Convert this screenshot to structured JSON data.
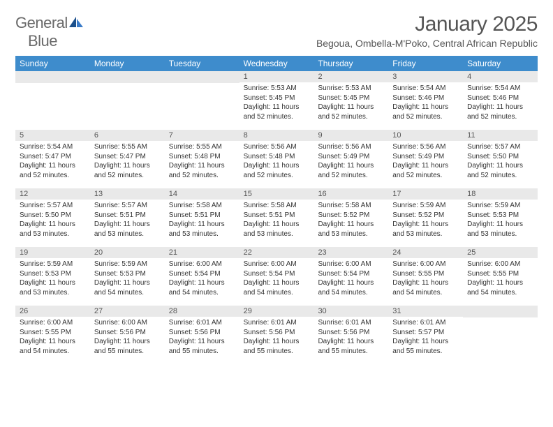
{
  "brand": {
    "word1": "General",
    "word2": "Blue"
  },
  "title": "January 2025",
  "subtitle": "Begoua, Ombella-M'Poko, Central African Republic",
  "colors": {
    "header_bg": "#3e8ccc",
    "daynum_bg": "#e9e9e9",
    "text": "#333333",
    "title_text": "#555555",
    "logo_gray": "#6a6a6a",
    "logo_blue": "#3a7bc8"
  },
  "day_names": [
    "Sunday",
    "Monday",
    "Tuesday",
    "Wednesday",
    "Thursday",
    "Friday",
    "Saturday"
  ],
  "weeks": [
    [
      {
        "day": "",
        "sunrise": "",
        "sunset": "",
        "daylight1": "",
        "daylight2": ""
      },
      {
        "day": "",
        "sunrise": "",
        "sunset": "",
        "daylight1": "",
        "daylight2": ""
      },
      {
        "day": "",
        "sunrise": "",
        "sunset": "",
        "daylight1": "",
        "daylight2": ""
      },
      {
        "day": "1",
        "sunrise": "Sunrise: 5:53 AM",
        "sunset": "Sunset: 5:45 PM",
        "daylight1": "Daylight: 11 hours",
        "daylight2": "and 52 minutes."
      },
      {
        "day": "2",
        "sunrise": "Sunrise: 5:53 AM",
        "sunset": "Sunset: 5:45 PM",
        "daylight1": "Daylight: 11 hours",
        "daylight2": "and 52 minutes."
      },
      {
        "day": "3",
        "sunrise": "Sunrise: 5:54 AM",
        "sunset": "Sunset: 5:46 PM",
        "daylight1": "Daylight: 11 hours",
        "daylight2": "and 52 minutes."
      },
      {
        "day": "4",
        "sunrise": "Sunrise: 5:54 AM",
        "sunset": "Sunset: 5:46 PM",
        "daylight1": "Daylight: 11 hours",
        "daylight2": "and 52 minutes."
      }
    ],
    [
      {
        "day": "5",
        "sunrise": "Sunrise: 5:54 AM",
        "sunset": "Sunset: 5:47 PM",
        "daylight1": "Daylight: 11 hours",
        "daylight2": "and 52 minutes."
      },
      {
        "day": "6",
        "sunrise": "Sunrise: 5:55 AM",
        "sunset": "Sunset: 5:47 PM",
        "daylight1": "Daylight: 11 hours",
        "daylight2": "and 52 minutes."
      },
      {
        "day": "7",
        "sunrise": "Sunrise: 5:55 AM",
        "sunset": "Sunset: 5:48 PM",
        "daylight1": "Daylight: 11 hours",
        "daylight2": "and 52 minutes."
      },
      {
        "day": "8",
        "sunrise": "Sunrise: 5:56 AM",
        "sunset": "Sunset: 5:48 PM",
        "daylight1": "Daylight: 11 hours",
        "daylight2": "and 52 minutes."
      },
      {
        "day": "9",
        "sunrise": "Sunrise: 5:56 AM",
        "sunset": "Sunset: 5:49 PM",
        "daylight1": "Daylight: 11 hours",
        "daylight2": "and 52 minutes."
      },
      {
        "day": "10",
        "sunrise": "Sunrise: 5:56 AM",
        "sunset": "Sunset: 5:49 PM",
        "daylight1": "Daylight: 11 hours",
        "daylight2": "and 52 minutes."
      },
      {
        "day": "11",
        "sunrise": "Sunrise: 5:57 AM",
        "sunset": "Sunset: 5:50 PM",
        "daylight1": "Daylight: 11 hours",
        "daylight2": "and 52 minutes."
      }
    ],
    [
      {
        "day": "12",
        "sunrise": "Sunrise: 5:57 AM",
        "sunset": "Sunset: 5:50 PM",
        "daylight1": "Daylight: 11 hours",
        "daylight2": "and 53 minutes."
      },
      {
        "day": "13",
        "sunrise": "Sunrise: 5:57 AM",
        "sunset": "Sunset: 5:51 PM",
        "daylight1": "Daylight: 11 hours",
        "daylight2": "and 53 minutes."
      },
      {
        "day": "14",
        "sunrise": "Sunrise: 5:58 AM",
        "sunset": "Sunset: 5:51 PM",
        "daylight1": "Daylight: 11 hours",
        "daylight2": "and 53 minutes."
      },
      {
        "day": "15",
        "sunrise": "Sunrise: 5:58 AM",
        "sunset": "Sunset: 5:51 PM",
        "daylight1": "Daylight: 11 hours",
        "daylight2": "and 53 minutes."
      },
      {
        "day": "16",
        "sunrise": "Sunrise: 5:58 AM",
        "sunset": "Sunset: 5:52 PM",
        "daylight1": "Daylight: 11 hours",
        "daylight2": "and 53 minutes."
      },
      {
        "day": "17",
        "sunrise": "Sunrise: 5:59 AM",
        "sunset": "Sunset: 5:52 PM",
        "daylight1": "Daylight: 11 hours",
        "daylight2": "and 53 minutes."
      },
      {
        "day": "18",
        "sunrise": "Sunrise: 5:59 AM",
        "sunset": "Sunset: 5:53 PM",
        "daylight1": "Daylight: 11 hours",
        "daylight2": "and 53 minutes."
      }
    ],
    [
      {
        "day": "19",
        "sunrise": "Sunrise: 5:59 AM",
        "sunset": "Sunset: 5:53 PM",
        "daylight1": "Daylight: 11 hours",
        "daylight2": "and 53 minutes."
      },
      {
        "day": "20",
        "sunrise": "Sunrise: 5:59 AM",
        "sunset": "Sunset: 5:53 PM",
        "daylight1": "Daylight: 11 hours",
        "daylight2": "and 54 minutes."
      },
      {
        "day": "21",
        "sunrise": "Sunrise: 6:00 AM",
        "sunset": "Sunset: 5:54 PM",
        "daylight1": "Daylight: 11 hours",
        "daylight2": "and 54 minutes."
      },
      {
        "day": "22",
        "sunrise": "Sunrise: 6:00 AM",
        "sunset": "Sunset: 5:54 PM",
        "daylight1": "Daylight: 11 hours",
        "daylight2": "and 54 minutes."
      },
      {
        "day": "23",
        "sunrise": "Sunrise: 6:00 AM",
        "sunset": "Sunset: 5:54 PM",
        "daylight1": "Daylight: 11 hours",
        "daylight2": "and 54 minutes."
      },
      {
        "day": "24",
        "sunrise": "Sunrise: 6:00 AM",
        "sunset": "Sunset: 5:55 PM",
        "daylight1": "Daylight: 11 hours",
        "daylight2": "and 54 minutes."
      },
      {
        "day": "25",
        "sunrise": "Sunrise: 6:00 AM",
        "sunset": "Sunset: 5:55 PM",
        "daylight1": "Daylight: 11 hours",
        "daylight2": "and 54 minutes."
      }
    ],
    [
      {
        "day": "26",
        "sunrise": "Sunrise: 6:00 AM",
        "sunset": "Sunset: 5:55 PM",
        "daylight1": "Daylight: 11 hours",
        "daylight2": "and 54 minutes."
      },
      {
        "day": "27",
        "sunrise": "Sunrise: 6:00 AM",
        "sunset": "Sunset: 5:56 PM",
        "daylight1": "Daylight: 11 hours",
        "daylight2": "and 55 minutes."
      },
      {
        "day": "28",
        "sunrise": "Sunrise: 6:01 AM",
        "sunset": "Sunset: 5:56 PM",
        "daylight1": "Daylight: 11 hours",
        "daylight2": "and 55 minutes."
      },
      {
        "day": "29",
        "sunrise": "Sunrise: 6:01 AM",
        "sunset": "Sunset: 5:56 PM",
        "daylight1": "Daylight: 11 hours",
        "daylight2": "and 55 minutes."
      },
      {
        "day": "30",
        "sunrise": "Sunrise: 6:01 AM",
        "sunset": "Sunset: 5:56 PM",
        "daylight1": "Daylight: 11 hours",
        "daylight2": "and 55 minutes."
      },
      {
        "day": "31",
        "sunrise": "Sunrise: 6:01 AM",
        "sunset": "Sunset: 5:57 PM",
        "daylight1": "Daylight: 11 hours",
        "daylight2": "and 55 minutes."
      },
      {
        "day": "",
        "sunrise": "",
        "sunset": "",
        "daylight1": "",
        "daylight2": ""
      }
    ]
  ]
}
